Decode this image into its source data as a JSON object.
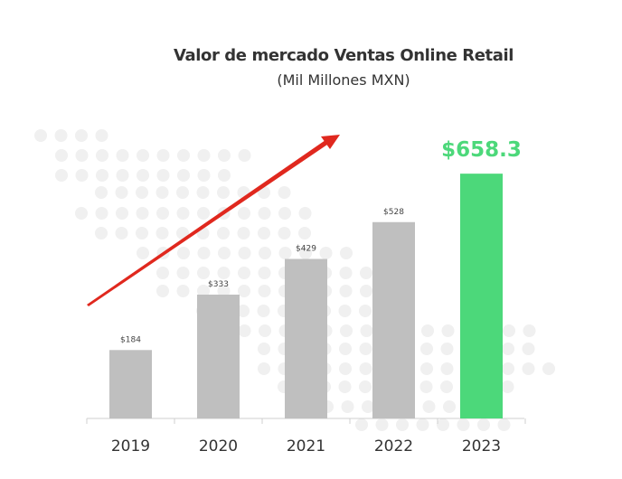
{
  "chart_data": {
    "type": "bar",
    "title": "Valor de mercado Ventas Online Retail",
    "subtitle": "(Mil Millones MXN)",
    "categories": [
      "2019",
      "2020",
      "2021",
      "2022",
      "2023"
    ],
    "values": [
      184,
      333,
      429,
      528,
      658.3
    ],
    "data_labels": [
      "$184",
      "$333",
      "$429",
      "$528",
      "$658.3"
    ],
    "highlight_index": 4,
    "ylim": [
      0,
      700
    ],
    "grid": false,
    "legend": "none",
    "trend_arrow": true
  },
  "colors": {
    "bar": "#bfbfbf",
    "highlight_bar": "#4cd87a",
    "highlight_label": "#4cd87a",
    "arrow": "#e0281e",
    "background_dots": "#f0f0f0",
    "axis": "#cfcfcf"
  }
}
